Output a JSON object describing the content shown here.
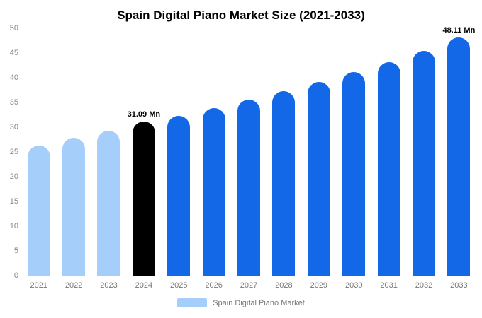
{
  "chart_data": {
    "type": "bar",
    "title": "Spain Digital Piano Market Size (2021-2033)",
    "categories": [
      "2021",
      "2022",
      "2023",
      "2024",
      "2025",
      "2026",
      "2027",
      "2028",
      "2029",
      "2030",
      "2031",
      "2032",
      "2033"
    ],
    "values": [
      26.3,
      27.9,
      29.3,
      31.09,
      32.3,
      33.9,
      35.6,
      37.3,
      39.2,
      41.1,
      43.2,
      45.5,
      48.11
    ],
    "bar_colors": [
      "#A6CEFA",
      "#A6CEFA",
      "#A6CEFA",
      "#000000",
      "#1368E8",
      "#1368E8",
      "#1368E8",
      "#1368E8",
      "#1368E8",
      "#1368E8",
      "#1368E8",
      "#1368E8",
      "#1368E8"
    ],
    "annotations": [
      {
        "index": 3,
        "text": "31.09 Mn"
      },
      {
        "index": 12,
        "text": "48.11 Mn"
      }
    ],
    "ylim": [
      0,
      50
    ],
    "ytick_step": 5,
    "grid": false,
    "legend": "Spain Digital Piano Market",
    "legend_position": "bottom",
    "legend_swatch_color": "#A6CEFA",
    "xlabel": "",
    "ylabel": ""
  }
}
